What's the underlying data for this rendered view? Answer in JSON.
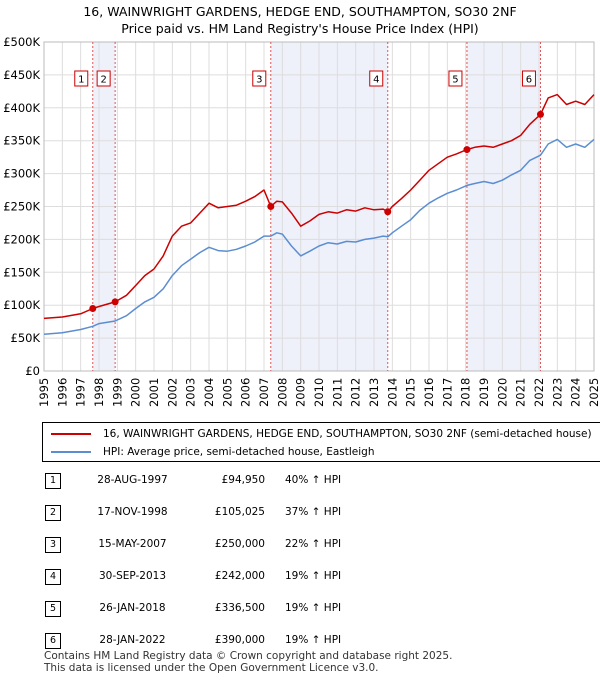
{
  "title_line1": "16, WAINWRIGHT GARDENS, HEDGE END, SOUTHAMPTON, SO30 2NF",
  "title_line2": "Price paid vs. HM Land Registry's House Price Index (HPI)",
  "colors": {
    "property": "#cc0000",
    "hpi": "#5b8ed1",
    "shade": "#eef0fa",
    "grid": "#dddddd",
    "marker_line": "#dd5555"
  },
  "chart_data": {
    "type": "line",
    "xlim": [
      1995,
      2025
    ],
    "ylim": [
      0,
      500000
    ],
    "y_ticks": [
      0,
      50000,
      100000,
      150000,
      200000,
      250000,
      300000,
      350000,
      400000,
      450000,
      500000
    ],
    "y_tick_labels": [
      "£0",
      "£50K",
      "£100K",
      "£150K",
      "£200K",
      "£250K",
      "£300K",
      "£350K",
      "£400K",
      "£450K",
      "£500K"
    ],
    "x_ticks": [
      1995,
      1996,
      1997,
      1998,
      1999,
      2000,
      2001,
      2002,
      2003,
      2004,
      2005,
      2006,
      2007,
      2008,
      2009,
      2010,
      2011,
      2012,
      2013,
      2014,
      2015,
      2016,
      2017,
      2018,
      2019,
      2020,
      2021,
      2022,
      2023,
      2024,
      2025
    ],
    "series": [
      {
        "name": "16, WAINWRIGHT GARDENS, HEDGE END, SOUTHAMPTON, SO30 2NF (semi-detached house)",
        "color": "#cc0000",
        "x": [
          1995.0,
          1996.0,
          1997.0,
          1997.66,
          1998.0,
          1998.88,
          1999.5,
          2000.0,
          2000.5,
          2001.0,
          2001.5,
          2002.0,
          2002.5,
          2003.0,
          2003.5,
          2004.0,
          2004.5,
          2005.0,
          2005.5,
          2006.0,
          2006.5,
          2007.0,
          2007.37,
          2007.7,
          2008.0,
          2008.5,
          2009.0,
          2009.5,
          2010.0,
          2010.5,
          2011.0,
          2011.5,
          2012.0,
          2012.5,
          2013.0,
          2013.5,
          2013.75,
          2014.0,
          2014.5,
          2015.0,
          2015.5,
          2016.0,
          2016.5,
          2017.0,
          2017.5,
          2018.07,
          2018.5,
          2019.0,
          2019.5,
          2020.0,
          2020.5,
          2021.0,
          2021.5,
          2022.08,
          2022.5,
          2023.0,
          2023.5,
          2024.0,
          2024.5,
          2025.0
        ],
        "y": [
          80000,
          82000,
          87000,
          94950,
          98000,
          105025,
          115000,
          130000,
          145000,
          155000,
          175000,
          205000,
          220000,
          225000,
          240000,
          255000,
          248000,
          250000,
          252000,
          258000,
          265000,
          275000,
          250000,
          258000,
          257000,
          240000,
          220000,
          228000,
          238000,
          242000,
          240000,
          245000,
          243000,
          248000,
          245000,
          246000,
          242000,
          250000,
          262000,
          275000,
          290000,
          305000,
          315000,
          325000,
          330000,
          336500,
          340000,
          342000,
          340000,
          345000,
          350000,
          358000,
          375000,
          390000,
          415000,
          420000,
          405000,
          410000,
          405000,
          420000
        ]
      },
      {
        "name": "HPI: Average price, semi-detached house, Eastleigh",
        "color": "#5b8ed1",
        "x": [
          1995.0,
          1996.0,
          1997.0,
          1997.66,
          1998.0,
          1998.88,
          1999.5,
          2000.0,
          2000.5,
          2001.0,
          2001.5,
          2002.0,
          2002.5,
          2003.0,
          2003.5,
          2004.0,
          2004.5,
          2005.0,
          2005.5,
          2006.0,
          2006.5,
          2007.0,
          2007.37,
          2007.7,
          2008.0,
          2008.5,
          2009.0,
          2009.5,
          2010.0,
          2010.5,
          2011.0,
          2011.5,
          2012.0,
          2012.5,
          2013.0,
          2013.5,
          2013.75,
          2014.0,
          2014.5,
          2015.0,
          2015.5,
          2016.0,
          2016.5,
          2017.0,
          2017.5,
          2018.07,
          2018.5,
          2019.0,
          2019.5,
          2020.0,
          2020.5,
          2021.0,
          2021.5,
          2022.08,
          2022.5,
          2023.0,
          2023.5,
          2024.0,
          2024.5,
          2025.0
        ],
        "y": [
          56000,
          58000,
          63000,
          68000,
          72000,
          76000,
          84000,
          95000,
          105000,
          112000,
          125000,
          145000,
          160000,
          170000,
          180000,
          188000,
          183000,
          182000,
          185000,
          190000,
          196000,
          205000,
          205000,
          210000,
          208000,
          190000,
          175000,
          182000,
          190000,
          195000,
          193000,
          197000,
          196000,
          200000,
          202000,
          205000,
          204000,
          210000,
          220000,
          230000,
          244000,
          255000,
          263000,
          270000,
          275000,
          282000,
          285000,
          288000,
          285000,
          290000,
          298000,
          305000,
          320000,
          328000,
          345000,
          352000,
          340000,
          345000,
          340000,
          352000
        ]
      }
    ],
    "sales": [
      {
        "label": "1",
        "year": 1997.66,
        "price": 94950
      },
      {
        "label": "2",
        "year": 1998.88,
        "price": 105025
      },
      {
        "label": "3",
        "year": 2007.37,
        "price": 250000
      },
      {
        "label": "4",
        "year": 2013.75,
        "price": 242000
      },
      {
        "label": "5",
        "year": 2018.07,
        "price": 336500
      },
      {
        "label": "6",
        "year": 2022.08,
        "price": 390000
      }
    ],
    "shaded_spans": [
      [
        1997.66,
        1998.88
      ],
      [
        2007.37,
        2013.75
      ],
      [
        2018.07,
        2022.08
      ]
    ]
  },
  "legend": {
    "property": "16, WAINWRIGHT GARDENS, HEDGE END, SOUTHAMPTON, SO30 2NF (semi-detached house)",
    "hpi": "HPI: Average price, semi-detached house, Eastleigh"
  },
  "sales_table": [
    {
      "num": "1",
      "date": "28-AUG-1997",
      "price": "£94,950",
      "hpi": "40% ↑ HPI"
    },
    {
      "num": "2",
      "date": "17-NOV-1998",
      "price": "£105,025",
      "hpi": "37% ↑ HPI"
    },
    {
      "num": "3",
      "date": "15-MAY-2007",
      "price": "£250,000",
      "hpi": "22% ↑ HPI"
    },
    {
      "num": "4",
      "date": "30-SEP-2013",
      "price": "£242,000",
      "hpi": "19% ↑ HPI"
    },
    {
      "num": "5",
      "date": "26-JAN-2018",
      "price": "£336,500",
      "hpi": "19% ↑ HPI"
    },
    {
      "num": "6",
      "date": "28-JAN-2022",
      "price": "£390,000",
      "hpi": "19% ↑ HPI"
    }
  ],
  "footer_line1": "Contains HM Land Registry data © Crown copyright and database right 2025.",
  "footer_line2": "This data is licensed under the Open Government Licence v3.0."
}
